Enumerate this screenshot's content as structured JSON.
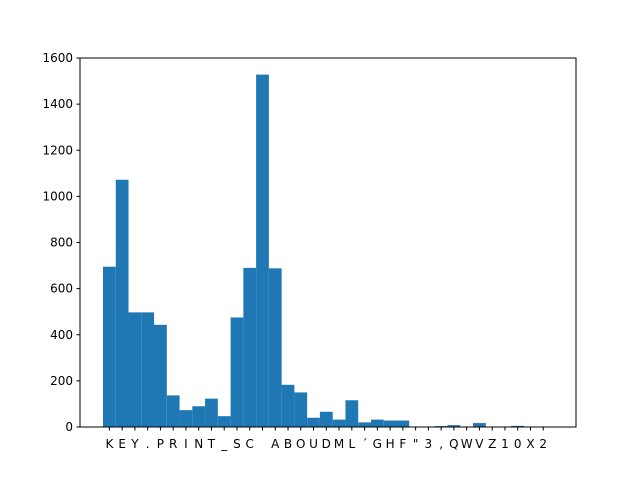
{
  "chart_data": {
    "type": "bar",
    "categories": [
      "K",
      "E",
      "Y",
      ".",
      "P",
      "R",
      "I",
      "N",
      "T",
      "_",
      "S",
      "C",
      " ",
      "A",
      "B",
      "O",
      "U",
      "D",
      "M",
      "L",
      "´",
      "G",
      "H",
      "F",
      "\"",
      "3",
      ",",
      "Q",
      "W",
      "V",
      "Z",
      "1",
      "0",
      "X",
      "2"
    ],
    "values": [
      695,
      1072,
      497,
      497,
      443,
      137,
      73,
      90,
      123,
      47,
      475,
      690,
      1528,
      688,
      183,
      150,
      40,
      66,
      32,
      116,
      20,
      32,
      28,
      28,
      0,
      0,
      4,
      8,
      0,
      17,
      0,
      0,
      5,
      0,
      0
    ],
    "ylim": [
      0,
      1600
    ],
    "yticks": [
      0,
      200,
      400,
      600,
      800,
      1000,
      1200,
      1400,
      1600
    ],
    "bar_color": "#1f77b4",
    "title": "",
    "xlabel": "",
    "ylabel": "",
    "grid": false
  }
}
